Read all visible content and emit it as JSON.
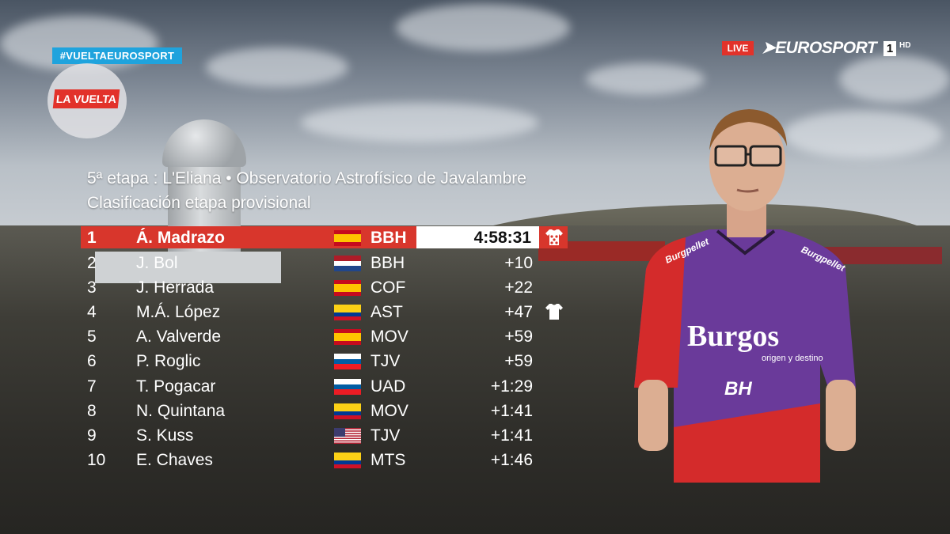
{
  "broadcast": {
    "hashtag": "#VUELTAEUROSPORT",
    "race_logo": "LA VUELTA",
    "live_label": "LIVE",
    "channel": "EUROSPORT",
    "channel_number": "1",
    "channel_hd": "HD"
  },
  "header": {
    "stage": "5ª etapa : L'Eliana • Observatorio Astrofísico de Javalambre",
    "subtitle": "Clasificación etapa provisional"
  },
  "results": [
    {
      "pos": "1",
      "name": "Á. Madrazo",
      "flag": "spain",
      "team": "BBH",
      "time": "4:58:31",
      "jersey": "polka-dot-jersey-icon"
    },
    {
      "pos": "2",
      "name": "J. Bol",
      "flag": "netherlands",
      "team": "BBH",
      "time": "+10"
    },
    {
      "pos": "3",
      "name": "J. Herrada",
      "flag": "spain",
      "team": "COF",
      "time": "+22"
    },
    {
      "pos": "4",
      "name": "M.Á. López",
      "flag": "colombia",
      "team": "AST",
      "time": "+47",
      "jersey": "white-jersey-icon"
    },
    {
      "pos": "5",
      "name": "A. Valverde",
      "flag": "spain",
      "team": "MOV",
      "time": "+59"
    },
    {
      "pos": "6",
      "name": "P. Roglic",
      "flag": "slovenia",
      "team": "TJV",
      "time": "+59"
    },
    {
      "pos": "7",
      "name": "T. Pogacar",
      "flag": "slovenia",
      "team": "UAD",
      "time": "+1:29"
    },
    {
      "pos": "8",
      "name": "N. Quintana",
      "flag": "colombia",
      "team": "MOV",
      "time": "+1:41"
    },
    {
      "pos": "9",
      "name": "S. Kuss",
      "flag": "usa",
      "team": "TJV",
      "time": "+1:41"
    },
    {
      "pos": "10",
      "name": "E. Chaves",
      "flag": "colombia",
      "team": "MTS",
      "time": "+1:46"
    }
  ],
  "rider_jersey": {
    "brand": "Burgos",
    "tagline": "origen y destino",
    "sponsor": "BH",
    "shoulder_left": "Burgpellet",
    "shoulder_right": "Burgpellet"
  },
  "colors": {
    "lead_row": "#d8362c",
    "hashtag_bg": "#1fa3dd",
    "jersey_purple": "#6a3a9a",
    "jersey_red": "#d42b2b"
  }
}
